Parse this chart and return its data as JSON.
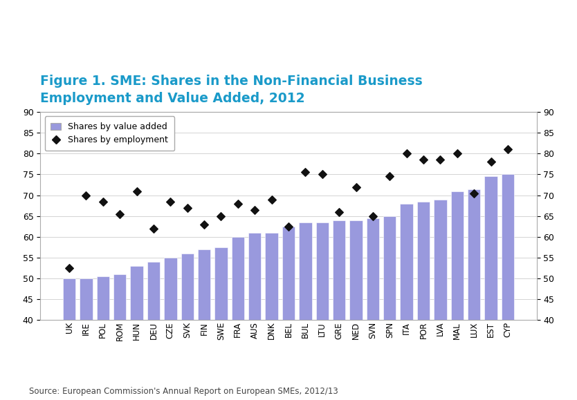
{
  "title_line1": "Figure 1. SME: Shares in the Non-Financial Business",
  "title_line2": "Employment and Value Added, 2012",
  "title_color": "#1a9ac9",
  "categories": [
    "UK",
    "IRE",
    "POL",
    "ROM",
    "HUN",
    "DEU",
    "CZE",
    "SVK",
    "FIN",
    "SWE",
    "FRA",
    "AUS",
    "DNK",
    "BEL",
    "BUL",
    "LTU",
    "GRE",
    "NED",
    "SVN",
    "SPN",
    "ITA",
    "POR",
    "LVA",
    "MAL",
    "LUX",
    "EST",
    "CYP"
  ],
  "bar_values": [
    50,
    50,
    50.5,
    51,
    53,
    54,
    55,
    56,
    57,
    57.5,
    60,
    61,
    61,
    62.5,
    63.5,
    63.5,
    64,
    64,
    64.5,
    65,
    68,
    68.5,
    69,
    71,
    71.5,
    74.5,
    75
  ],
  "dot_values": [
    52.5,
    70,
    68.5,
    65.5,
    71,
    62,
    68.5,
    67,
    63,
    65,
    68,
    66.5,
    69,
    62.5,
    75.5,
    75,
    66,
    72,
    65,
    74.5,
    80,
    78.5,
    78.5,
    80,
    70.5,
    78,
    81
  ],
  "bar_color": "#9999dd",
  "bar_edge_color": "#aaaaee",
  "dot_color": "#111111",
  "ymin": 40,
  "ymax": 90,
  "yticks": [
    40,
    45,
    50,
    55,
    60,
    65,
    70,
    75,
    80,
    85,
    90
  ],
  "source_text": "Source: European Commission's Annual Report on European SMEs, 2012/13",
  "legend_bar_label": "Shares by value added",
  "legend_dot_label": "Shares by employment",
  "background_color": "#ffffff",
  "plot_bg_color": "#ffffff"
}
